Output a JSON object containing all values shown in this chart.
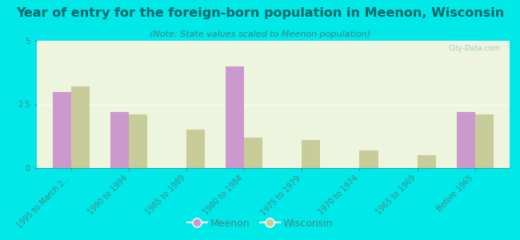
{
  "title": "Year of entry for the foreign-born population in Meenon, Wisconsin",
  "subtitle": "(Note: State values scaled to Meenon population)",
  "categories": [
    "1995 to March 2...",
    "1990 to 1994",
    "1985 to 1989",
    "1980 to 1984",
    "1975 to 1979",
    "1970 to 1974",
    "1965 to 1969",
    "Before 1965"
  ],
  "meenon_values": [
    3.0,
    2.2,
    0.0,
    4.0,
    0.0,
    0.0,
    0.0,
    2.2
  ],
  "wisconsin_values": [
    3.2,
    2.1,
    1.5,
    1.2,
    1.1,
    0.7,
    0.5,
    2.1
  ],
  "meenon_color": "#cc99cc",
  "wisconsin_color": "#c8cc99",
  "background_color": "#00e8e8",
  "plot_bg_color": "#edf5de",
  "title_color": "#006666",
  "subtitle_color": "#338888",
  "tick_color": "#448888",
  "ylim": [
    0,
    5
  ],
  "yticks": [
    0,
    2.5,
    5
  ],
  "bar_width": 0.32,
  "title_fontsize": 11.5,
  "subtitle_fontsize": 8,
  "legend_fontsize": 9,
  "tick_fontsize": 7,
  "watermark": "City-Data.com"
}
